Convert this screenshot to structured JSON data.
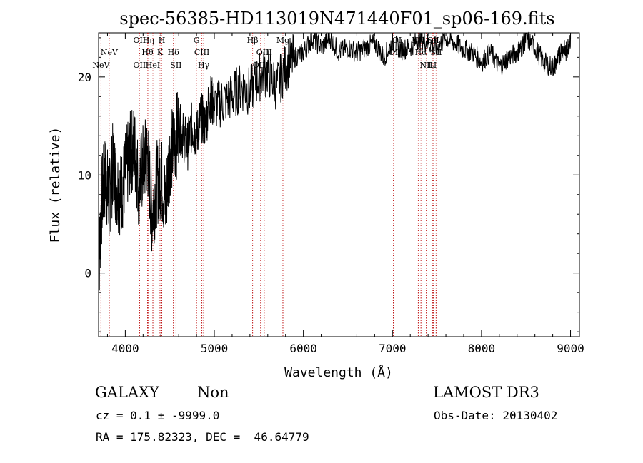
{
  "chart_data": {
    "type": "line",
    "title": "spec-56385-HD113019N471440F01_sp06-169.fits",
    "xlabel": "Wavelength (Å)",
    "ylabel": "Flux (relative)",
    "xlim": [
      3700,
      9100
    ],
    "ylim": [
      -6.5,
      24.5
    ],
    "xticks": [
      4000,
      5000,
      6000,
      7000,
      8000,
      9000
    ],
    "yticks": [
      0,
      10,
      20
    ],
    "grid": false,
    "series": [
      {
        "name": "spectrum",
        "x": [
          3700,
          3740,
          3780,
          3820,
          3860,
          3900,
          3950,
          4000,
          4050,
          4100,
          4150,
          4200,
          4250,
          4300,
          4350,
          4400,
          4450,
          4500,
          4550,
          4600,
          4650,
          4700,
          4750,
          4800,
          4850,
          4900,
          4950,
          5000,
          5100,
          5200,
          5300,
          5400,
          5500,
          5600,
          5700,
          5800,
          5900,
          6000,
          6100,
          6200,
          6300,
          6400,
          6500,
          6600,
          6700,
          6800,
          6900,
          7000,
          7100,
          7200,
          7300,
          7400,
          7500,
          7600,
          7700,
          7800,
          7900,
          8000,
          8100,
          8200,
          8300,
          8400,
          8450,
          8500,
          8600,
          8700,
          8800,
          8850,
          8900,
          8950,
          9000
        ],
        "y": [
          0,
          8,
          10,
          7,
          11,
          9,
          8,
          10,
          12,
          13,
          9,
          11,
          12,
          6,
          9,
          10,
          7,
          12,
          13,
          15,
          14,
          13,
          15,
          14,
          16,
          15,
          18,
          17,
          17.5,
          18,
          19,
          18.5,
          20,
          20.5,
          19,
          21,
          22,
          22.5,
          24,
          23,
          24,
          22.5,
          23,
          22.5,
          23,
          23.5,
          22,
          23.5,
          22.8,
          23,
          24,
          23.5,
          23,
          24,
          23.5,
          22.8,
          22.5,
          21.5,
          22.5,
          21,
          22,
          22.5,
          23,
          24,
          23,
          21.5,
          21,
          21.5,
          23,
          22.5,
          24
        ]
      }
    ],
    "lines": [
      {
        "name": "NeV",
        "wavelength": 3727,
        "label_row": 2
      },
      {
        "name": "NeV",
        "wavelength": 3820,
        "label_row": 1
      },
      {
        "name": "OII",
        "wavelength": 4160,
        "label_row": 2
      },
      {
        "name": "OII",
        "wavelength": 4160,
        "label_row": 0
      },
      {
        "name": "Hη",
        "wavelength": 4260,
        "label_row": 0
      },
      {
        "name": "Hθ",
        "wavelength": 4250,
        "label_row": 1
      },
      {
        "name": "HeI",
        "wavelength": 4310,
        "label_row": 2
      },
      {
        "name": "K",
        "wavelength": 4390,
        "label_row": 1
      },
      {
        "name": "H",
        "wavelength": 4410,
        "label_row": 0
      },
      {
        "name": "Hδ",
        "wavelength": 4540,
        "label_row": 1
      },
      {
        "name": "SII",
        "wavelength": 4570,
        "label_row": 2
      },
      {
        "name": "G",
        "wavelength": 4800,
        "label_row": 0
      },
      {
        "name": "CIII",
        "wavelength": 4860,
        "label_row": 1
      },
      {
        "name": "Hγ",
        "wavelength": 4880,
        "label_row": 2
      },
      {
        "name": "Hβ",
        "wavelength": 5430,
        "label_row": 0
      },
      {
        "name": "OIII",
        "wavelength": 5560,
        "label_row": 1
      },
      {
        "name": "OIII",
        "wavelength": 5520,
        "label_row": 2
      },
      {
        "name": "Mg",
        "wavelength": 5770,
        "label_row": 0
      },
      {
        "name": "OI",
        "wavelength": 7050,
        "label_row": 0
      },
      {
        "name": "OI",
        "wavelength": 7010,
        "label_row": 1
      },
      {
        "name": "NII",
        "wavelength": 7290,
        "label_row": 0
      },
      {
        "name": "Hα",
        "wavelength": 7320,
        "label_row": 1
      },
      {
        "name": "NII",
        "wavelength": 7380,
        "label_row": 2
      },
      {
        "name": "SII",
        "wavelength": 7460,
        "label_row": 0
      },
      {
        "name": "SII",
        "wavelength": 7490,
        "label_row": 1
      },
      {
        "name": "LI",
        "wavelength": 7450,
        "label_row": 2
      }
    ]
  },
  "footer": {
    "object_class": "GALAXY",
    "subclass": "Non",
    "survey": "LAMOST DR3",
    "cz": "cz = 0.1 ± -9999.0",
    "obs_date": "Obs-Date: 20130402",
    "radec": "RA = 175.82323, DEC =  46.64779"
  }
}
